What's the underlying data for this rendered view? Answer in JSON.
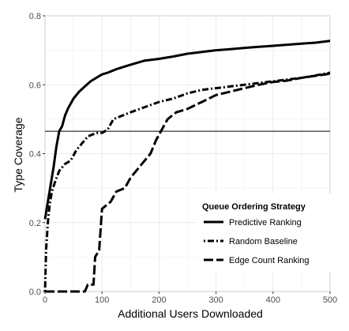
{
  "chart_data": {
    "type": "line",
    "xlabel": "Additional Users Downloaded",
    "ylabel": "Type Coverage",
    "xlim": [
      0,
      500
    ],
    "ylim": [
      0,
      0.8
    ],
    "x_ticks": [
      0,
      100,
      200,
      300,
      400,
      500
    ],
    "y_ticks": [
      0.0,
      0.2,
      0.4,
      0.6,
      0.8
    ],
    "x_tick_labels": [
      "0",
      "100",
      "200",
      "300",
      "400",
      "500"
    ],
    "y_tick_labels": [
      "0.0",
      "0.2",
      "0.4",
      "0.6",
      "0.8"
    ],
    "grid": true,
    "legend_title": "Queue Ordering Strategy",
    "legend_position": "bottom-right",
    "reference_line_y": 0.465,
    "series": [
      {
        "name": "Predictive Ranking",
        "style": "solid",
        "points": [
          [
            0,
            0.21
          ],
          [
            3,
            0.24
          ],
          [
            6,
            0.27
          ],
          [
            10,
            0.31
          ],
          [
            15,
            0.36
          ],
          [
            20,
            0.42
          ],
          [
            25,
            0.465
          ],
          [
            30,
            0.48
          ],
          [
            35,
            0.51
          ],
          [
            40,
            0.53
          ],
          [
            50,
            0.56
          ],
          [
            60,
            0.58
          ],
          [
            70,
            0.595
          ],
          [
            80,
            0.61
          ],
          [
            90,
            0.62
          ],
          [
            100,
            0.63
          ],
          [
            110,
            0.635
          ],
          [
            125,
            0.645
          ],
          [
            150,
            0.658
          ],
          [
            175,
            0.67
          ],
          [
            200,
            0.675
          ],
          [
            225,
            0.682
          ],
          [
            250,
            0.69
          ],
          [
            275,
            0.695
          ],
          [
            300,
            0.7
          ],
          [
            325,
            0.703
          ],
          [
            350,
            0.707
          ],
          [
            375,
            0.71
          ],
          [
            400,
            0.713
          ],
          [
            425,
            0.716
          ],
          [
            450,
            0.719
          ],
          [
            475,
            0.722
          ],
          [
            500,
            0.727
          ]
        ]
      },
      {
        "name": "Random Baseline",
        "style": "dot-dash",
        "points": [
          [
            0,
            0.0
          ],
          [
            2,
            0.12
          ],
          [
            5,
            0.2
          ],
          [
            8,
            0.25
          ],
          [
            12,
            0.29
          ],
          [
            18,
            0.32
          ],
          [
            25,
            0.35
          ],
          [
            35,
            0.37
          ],
          [
            45,
            0.38
          ],
          [
            55,
            0.41
          ],
          [
            65,
            0.43
          ],
          [
            75,
            0.45
          ],
          [
            90,
            0.46
          ],
          [
            100,
            0.46
          ],
          [
            110,
            0.47
          ],
          [
            120,
            0.5
          ],
          [
            135,
            0.51
          ],
          [
            150,
            0.52
          ],
          [
            175,
            0.535
          ],
          [
            200,
            0.55
          ],
          [
            225,
            0.56
          ],
          [
            250,
            0.575
          ],
          [
            275,
            0.585
          ],
          [
            300,
            0.59
          ],
          [
            325,
            0.595
          ],
          [
            350,
            0.6
          ],
          [
            375,
            0.605
          ],
          [
            400,
            0.61
          ],
          [
            425,
            0.615
          ],
          [
            450,
            0.62
          ],
          [
            475,
            0.627
          ],
          [
            500,
            0.635
          ]
        ]
      },
      {
        "name": "Edge Count Ranking",
        "style": "long-dash",
        "points": [
          [
            0,
            0.0
          ],
          [
            70,
            0.0
          ],
          [
            75,
            0.02
          ],
          [
            85,
            0.02
          ],
          [
            88,
            0.1
          ],
          [
            95,
            0.12
          ],
          [
            100,
            0.24
          ],
          [
            115,
            0.26
          ],
          [
            125,
            0.29
          ],
          [
            140,
            0.3
          ],
          [
            150,
            0.33
          ],
          [
            160,
            0.35
          ],
          [
            175,
            0.38
          ],
          [
            185,
            0.4
          ],
          [
            195,
            0.44
          ],
          [
            205,
            0.47
          ],
          [
            215,
            0.5
          ],
          [
            230,
            0.52
          ],
          [
            250,
            0.53
          ],
          [
            275,
            0.55
          ],
          [
            300,
            0.57
          ],
          [
            325,
            0.58
          ],
          [
            350,
            0.59
          ],
          [
            375,
            0.6
          ],
          [
            400,
            0.608
          ],
          [
            425,
            0.612
          ],
          [
            450,
            0.62
          ],
          [
            475,
            0.626
          ],
          [
            500,
            0.632
          ]
        ]
      }
    ]
  }
}
